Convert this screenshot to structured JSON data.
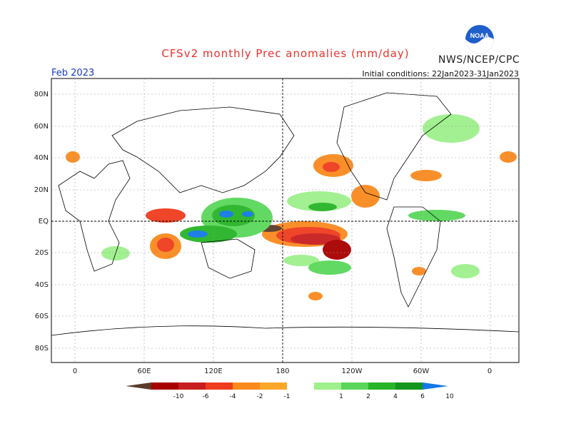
{
  "title": "CFSv2 monthly Prec anomalies (mm/day)",
  "agency": "NWS/NCEP/CPC",
  "logo_text": "NOAA",
  "month": "Feb 2023",
  "initial_conditions": "Initial conditions: 22Jan2023-31Jan2023",
  "lat_labels": [
    "80N",
    "60N",
    "40N",
    "20N",
    "EQ",
    "20S",
    "40S",
    "60S",
    "80S"
  ],
  "lon_labels": [
    "0",
    "60E",
    "120E",
    "180",
    "120W",
    "60W",
    "0"
  ],
  "colorbar": {
    "labels": [
      "-10",
      "-6",
      "-4",
      "-2",
      "-1",
      "1",
      "2",
      "4",
      "6",
      "10"
    ],
    "colors": [
      "#5a3a2a",
      "#a80000",
      "#c81e1e",
      "#ef3c1e",
      "#fa8a1e",
      "#fca72a",
      "#ffffff",
      "#9ef08c",
      "#5ad75a",
      "#28b428",
      "#14961e",
      "#1478e6"
    ]
  }
}
